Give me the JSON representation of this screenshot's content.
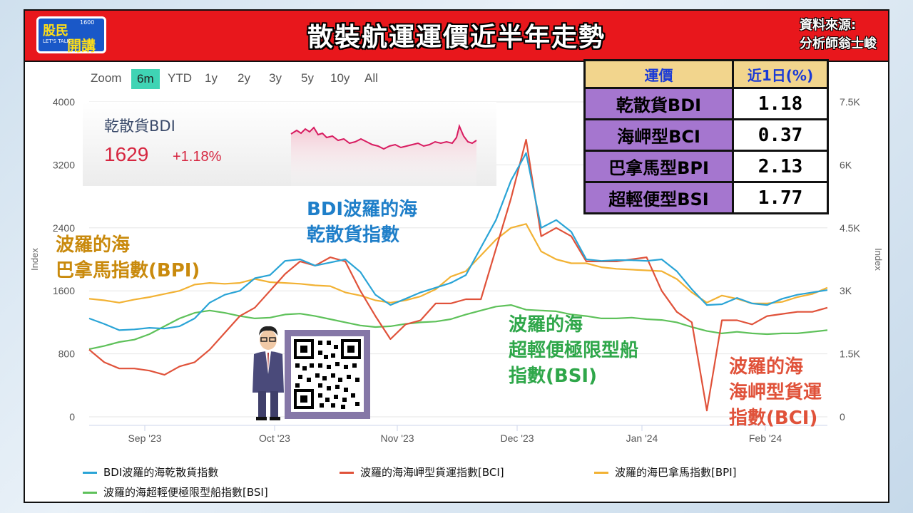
{
  "header": {
    "logo_main": "股民",
    "logo_sub": "開講",
    "logo_small1": "LET'S TALK",
    "logo_small2": "1600",
    "title": "散裝航運運價近半年走勢",
    "source_line1": "資料來源:",
    "source_line2": "分析師翁士峻"
  },
  "zoom": {
    "label": "Zoom",
    "buttons": [
      "6m",
      "YTD",
      "1y",
      "2y",
      "3y",
      "5y",
      "10y",
      "All"
    ],
    "active": "6m"
  },
  "mini_chart": {
    "name": "乾散貨BDI",
    "value": "1629",
    "change": "+1.18%"
  },
  "annotations": {
    "bdi": [
      "BDI波羅的海",
      "乾散貨指數"
    ],
    "bpi": [
      "波羅的海",
      "巴拿馬指數(BPI)"
    ],
    "bsi": [
      "波羅的海",
      "超輕便極限型船",
      "指數(BSI)"
    ],
    "bci": [
      "波羅的海",
      "海岬型貨運",
      "指數(BCI)"
    ]
  },
  "table": {
    "headers": [
      "運價",
      "近1日(%)"
    ],
    "rows": [
      {
        "name": "乾散貨BDI",
        "value": "1.18"
      },
      {
        "name": "海岬型BCI",
        "value": "0.37"
      },
      {
        "name": "巴拿馬型BPI",
        "value": "2.13"
      },
      {
        "name": "超輕便型BSI",
        "value": "1.77"
      }
    ]
  },
  "colors": {
    "bdi": "#2aa4d6",
    "bci": "#e0523a",
    "bpi": "#f2b234",
    "bsi": "#5ec15a",
    "anno_bdi": "#1f7fc9",
    "anno_bpi": "#c98a0d",
    "anno_bsi": "#2fa74a",
    "anno_bci": "#e0523a"
  },
  "chart_data": {
    "type": "line",
    "x_tick_labels": [
      "Sep '23",
      "Oct '23",
      "Nov '23",
      "Dec '23",
      "Jan '24",
      "Feb '24"
    ],
    "left_axis": {
      "label": "Index",
      "ticks": [
        "0",
        "800",
        "1600",
        "2400",
        "3200",
        "4000"
      ],
      "range": [
        0,
        4000
      ]
    },
    "right_axis": {
      "label": "Index",
      "ticks": [
        "0",
        "1.5K",
        "3K",
        "4.5K",
        "6K",
        "7.5K"
      ],
      "range": [
        0,
        7500
      ]
    },
    "legend_position": "bottom",
    "series": [
      {
        "name": "BDI波羅的海乾散貨指數",
        "axis": "left",
        "color_key": "bdi",
        "values": [
          1250,
          1180,
          1100,
          1110,
          1130,
          1120,
          1150,
          1250,
          1450,
          1550,
          1600,
          1760,
          1800,
          1980,
          2000,
          1920,
          1960,
          2000,
          1840,
          1550,
          1420,
          1500,
          1580,
          1640,
          1700,
          1800,
          2150,
          2500,
          3000,
          3350,
          2400,
          2500,
          2350,
          2000,
          1980,
          1990,
          1990,
          1980,
          2000,
          1850,
          1620,
          1420,
          1430,
          1510,
          1440,
          1420,
          1500,
          1550,
          1580,
          1610
        ]
      },
      {
        "name": "波羅的海海岬型貨運指數[BCI]",
        "axis": "right",
        "color_key": "bci",
        "values": [
          1600,
          1300,
          1150,
          1150,
          1100,
          1000,
          1200,
          1300,
          1600,
          2000,
          2400,
          2600,
          3000,
          3400,
          3700,
          3600,
          3800,
          3700,
          3000,
          2400,
          1850,
          2200,
          2300,
          2700,
          2700,
          2800,
          2800,
          4000,
          5200,
          6600,
          4300,
          4500,
          4300,
          3700,
          3700,
          3700,
          3750,
          3800,
          3000,
          2500,
          2250,
          150,
          2300,
          2300,
          2200,
          2400,
          2450,
          2500,
          2500,
          2600
        ]
      },
      {
        "name": "波羅的海巴拿馬指數[BPI]",
        "axis": "left",
        "color_key": "bpi",
        "values": [
          1500,
          1480,
          1450,
          1490,
          1520,
          1560,
          1600,
          1680,
          1700,
          1690,
          1700,
          1750,
          1710,
          1700,
          1690,
          1670,
          1660,
          1580,
          1540,
          1480,
          1450,
          1480,
          1530,
          1620,
          1780,
          1850,
          2050,
          2250,
          2400,
          2450,
          2100,
          2000,
          1950,
          1950,
          1900,
          1880,
          1870,
          1860,
          1850,
          1750,
          1580,
          1450,
          1540,
          1500,
          1440,
          1440,
          1460,
          1520,
          1560,
          1640
        ]
      },
      {
        "name": "波羅的海超輕便極限型船指數[BSI]",
        "axis": "left",
        "color_key": "bsi",
        "values": [
          860,
          900,
          950,
          980,
          1050,
          1150,
          1250,
          1320,
          1350,
          1320,
          1280,
          1250,
          1260,
          1300,
          1310,
          1280,
          1240,
          1200,
          1160,
          1140,
          1150,
          1180,
          1200,
          1210,
          1240,
          1300,
          1350,
          1400,
          1420,
          1360,
          1350,
          1340,
          1300,
          1280,
          1250,
          1250,
          1260,
          1240,
          1230,
          1200,
          1140,
          1090,
          1060,
          1080,
          1060,
          1050,
          1060,
          1060,
          1080,
          1100
        ]
      }
    ]
  }
}
